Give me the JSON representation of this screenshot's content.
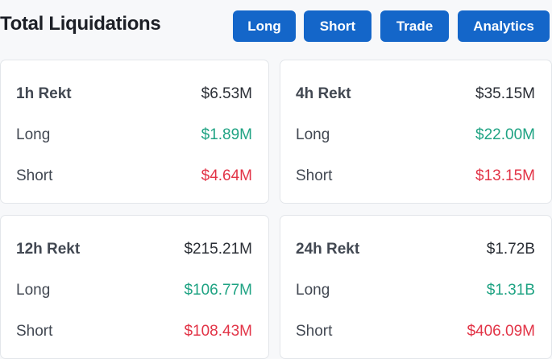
{
  "header": {
    "title": "Total Liquidations",
    "buttons": [
      "Long",
      "Short",
      "Trade",
      "Analytics"
    ]
  },
  "cards": [
    {
      "label": "1h Rekt",
      "total": "$6.53M",
      "rows": [
        {
          "label": "Long",
          "value": "$1.89M"
        },
        {
          "label": "Short",
          "value": "$4.64M"
        }
      ]
    },
    {
      "label": "4h Rekt",
      "total": "$35.15M",
      "rows": [
        {
          "label": "Long",
          "value": "$22.00M"
        },
        {
          "label": "Short",
          "value": "$13.15M"
        }
      ]
    },
    {
      "label": "12h Rekt",
      "total": "$215.21M",
      "rows": [
        {
          "label": "Long",
          "value": "$106.77M"
        },
        {
          "label": "Short",
          "value": "$108.43M"
        }
      ]
    },
    {
      "label": "24h Rekt",
      "total": "$1.72B",
      "rows": [
        {
          "label": "Long",
          "value": "$1.31B"
        },
        {
          "label": "Short",
          "value": "$406.09M"
        }
      ]
    }
  ]
}
